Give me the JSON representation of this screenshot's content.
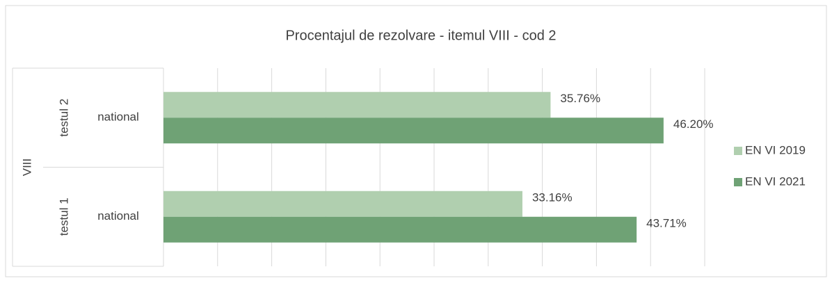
{
  "chart_data": {
    "type": "bar",
    "orientation": "horizontal",
    "title": "Procentajul de rezolvare - itemul VIII - cod 2",
    "group": "VIII",
    "subgroups": [
      "testul 2",
      "testul 1"
    ],
    "categories": [
      "national",
      "national"
    ],
    "series": [
      {
        "name": "EN VI 2019",
        "color": "#b0cfaf",
        "values": [
          35.76,
          33.16
        ],
        "value_labels": [
          "35.76%",
          "33.16%"
        ]
      },
      {
        "name": "EN VI 2021",
        "color": "#6fa275",
        "values": [
          46.2,
          43.71
        ],
        "value_labels": [
          "46.20%",
          "43.71%"
        ]
      }
    ],
    "xlim": [
      0,
      50
    ],
    "xticks": [
      0,
      5,
      10,
      15,
      20,
      25,
      30,
      35,
      40,
      45,
      50
    ],
    "grid": true,
    "legend": "right"
  }
}
